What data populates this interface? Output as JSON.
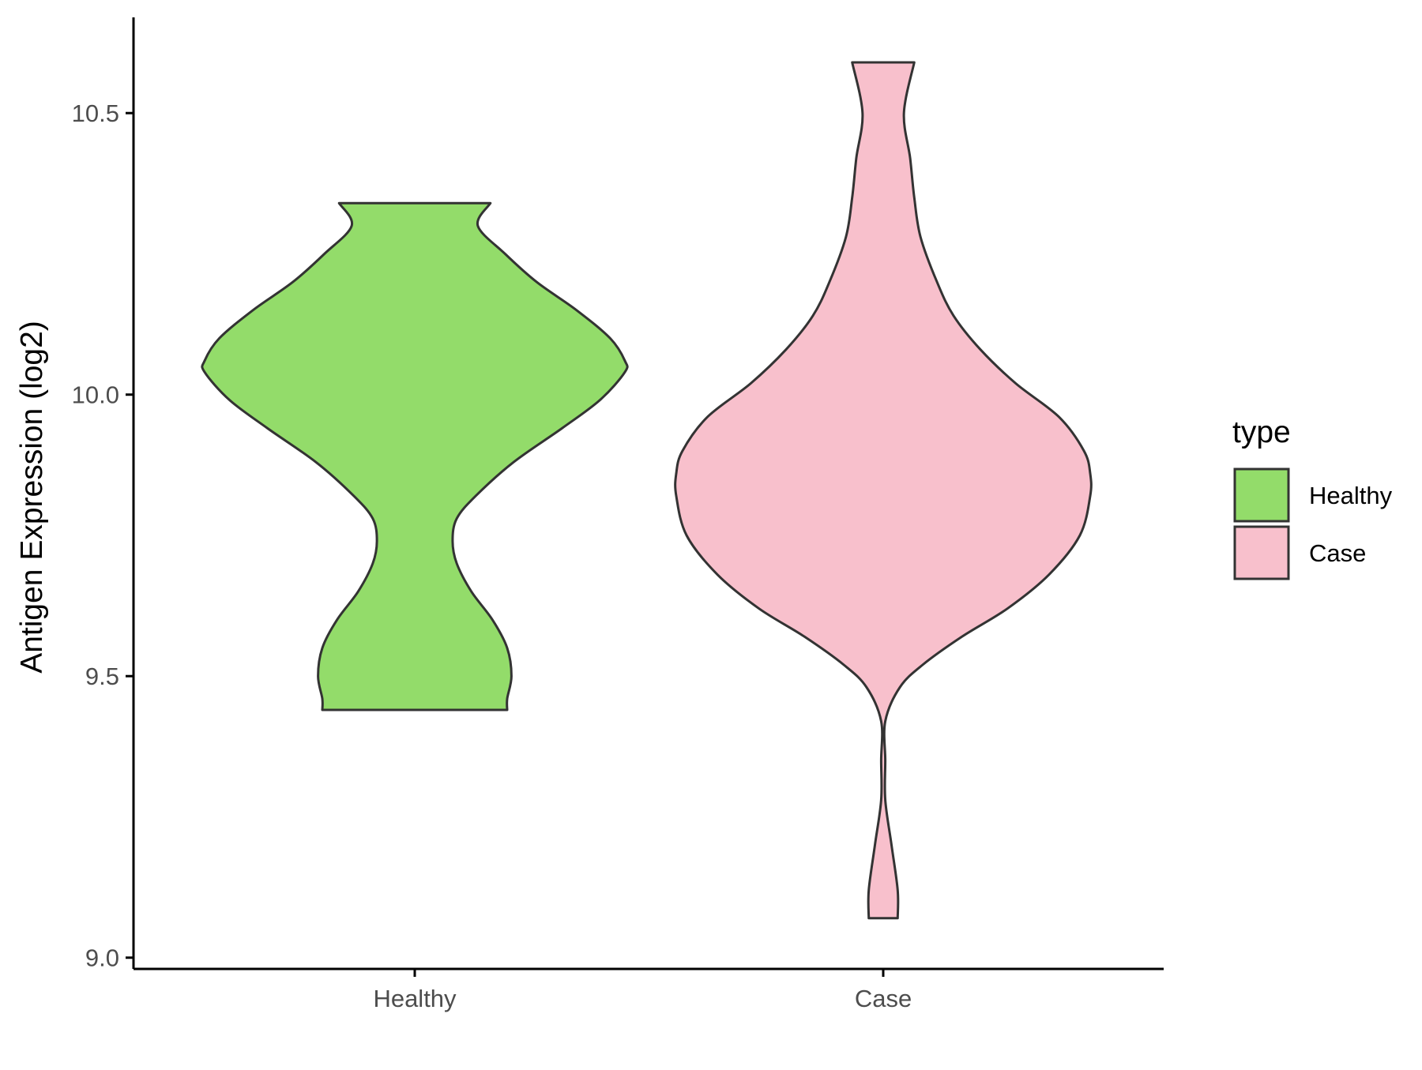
{
  "chart_data": {
    "type": "violin",
    "ylabel": "Antigen Expression (log2)",
    "xlabel": "",
    "categories": [
      "Healthy",
      "Case"
    ],
    "ylim": [
      8.98,
      10.67
    ],
    "yticks": [
      {
        "value": 9.0,
        "label": "9.0"
      },
      {
        "value": 9.5,
        "label": "9.5"
      },
      {
        "value": 10.0,
        "label": "10.0"
      },
      {
        "value": 10.5,
        "label": "10.5"
      }
    ],
    "grid": false,
    "legend": {
      "title": "type",
      "position": "right",
      "entries": [
        {
          "label": "Healthy",
          "color": "#93DC6A"
        },
        {
          "label": "Case",
          "color": "#F8C0CC"
        }
      ]
    },
    "series": [
      {
        "category": "Healthy",
        "color": "#93DC6A",
        "min": 9.44,
        "max": 10.34,
        "density": [
          [
            9.44,
            0.44
          ],
          [
            9.46,
            0.44
          ],
          [
            9.5,
            0.46
          ],
          [
            9.55,
            0.44
          ],
          [
            9.6,
            0.37
          ],
          [
            9.65,
            0.27
          ],
          [
            9.7,
            0.2
          ],
          [
            9.74,
            0.18
          ],
          [
            9.78,
            0.2
          ],
          [
            9.82,
            0.29
          ],
          [
            9.88,
            0.47
          ],
          [
            9.94,
            0.7
          ],
          [
            9.99,
            0.88
          ],
          [
            10.04,
            1.0
          ],
          [
            10.06,
            1.0
          ],
          [
            10.1,
            0.93
          ],
          [
            10.15,
            0.77
          ],
          [
            10.2,
            0.58
          ],
          [
            10.25,
            0.43
          ],
          [
            10.3,
            0.3
          ],
          [
            10.34,
            0.36
          ]
        ]
      },
      {
        "category": "Case",
        "color": "#F8C0CC",
        "min": 9.07,
        "max": 10.59,
        "density": [
          [
            9.07,
            0.07
          ],
          [
            9.12,
            0.07
          ],
          [
            9.2,
            0.04
          ],
          [
            9.28,
            0.01
          ],
          [
            9.35,
            0.01
          ],
          [
            9.42,
            0.01
          ],
          [
            9.48,
            0.08
          ],
          [
            9.52,
            0.19
          ],
          [
            9.57,
            0.38
          ],
          [
            9.62,
            0.6
          ],
          [
            9.68,
            0.8
          ],
          [
            9.75,
            0.95
          ],
          [
            9.82,
            1.0
          ],
          [
            9.86,
            1.0
          ],
          [
            9.9,
            0.97
          ],
          [
            9.96,
            0.85
          ],
          [
            10.02,
            0.64
          ],
          [
            10.08,
            0.47
          ],
          [
            10.14,
            0.34
          ],
          [
            10.2,
            0.26
          ],
          [
            10.28,
            0.18
          ],
          [
            10.35,
            0.15
          ],
          [
            10.42,
            0.13
          ],
          [
            10.5,
            0.1
          ],
          [
            10.59,
            0.15
          ]
        ]
      }
    ]
  }
}
